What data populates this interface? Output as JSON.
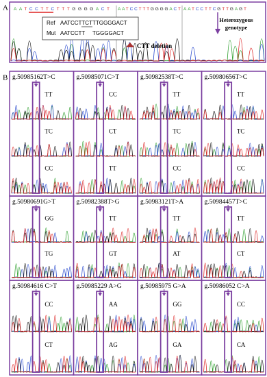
{
  "panel_a": {
    "label": "A",
    "sequence_segments": [
      "AATCCTTCTTTGGGGACT",
      "AATCCTTTGGGGACT",
      "AATCCTTCGTTGAGT"
    ],
    "ref": {
      "label": "Ref",
      "sequence": "AATCCTTCTTTGGGGACT"
    },
    "mut": {
      "label": "Mut",
      "sequence_start": "AATCCTT",
      "sequence_end": "TGGGGACT"
    },
    "deletion_label": "CTT deletion",
    "genotype_label": [
      "Heterozygous",
      "genotype"
    ]
  },
  "panel_b": {
    "label": "B",
    "cells": [
      {
        "title": "g.50985162T>C",
        "genotypes": [
          "TT",
          "TC",
          "CC"
        ]
      },
      {
        "title": "g.50985071C>T",
        "genotypes": [
          "CC",
          "CT",
          "TT"
        ]
      },
      {
        "title": "g.50982538T>C",
        "genotypes": [
          "TT",
          "TC",
          "CC"
        ]
      },
      {
        "title": "g.50980656T>C",
        "genotypes": [
          "TT",
          "TC",
          "CC"
        ]
      },
      {
        "title": "g.50980691G>T",
        "genotypes": [
          "GG",
          "TG"
        ]
      },
      {
        "title": "g.50982388T>G",
        "genotypes": [
          "TT",
          "GT"
        ]
      },
      {
        "title": "g.50983121T>A",
        "genotypes": [
          "TT",
          "AT"
        ]
      },
      {
        "title": "g.50984457T>C",
        "genotypes": [
          "TT",
          "CT"
        ]
      },
      {
        "title": "g.50984616 C>T",
        "genotypes": [
          "CC",
          "CT"
        ]
      },
      {
        "title": "g.50985229 A>G",
        "genotypes": [
          "AA",
          "AG"
        ]
      },
      {
        "title": "g.50985975 G>A",
        "genotypes": [
          "GG",
          "GA"
        ]
      },
      {
        "title": "g.50986052 C>A",
        "genotypes": [
          "CC",
          "CA"
        ]
      }
    ]
  }
}
